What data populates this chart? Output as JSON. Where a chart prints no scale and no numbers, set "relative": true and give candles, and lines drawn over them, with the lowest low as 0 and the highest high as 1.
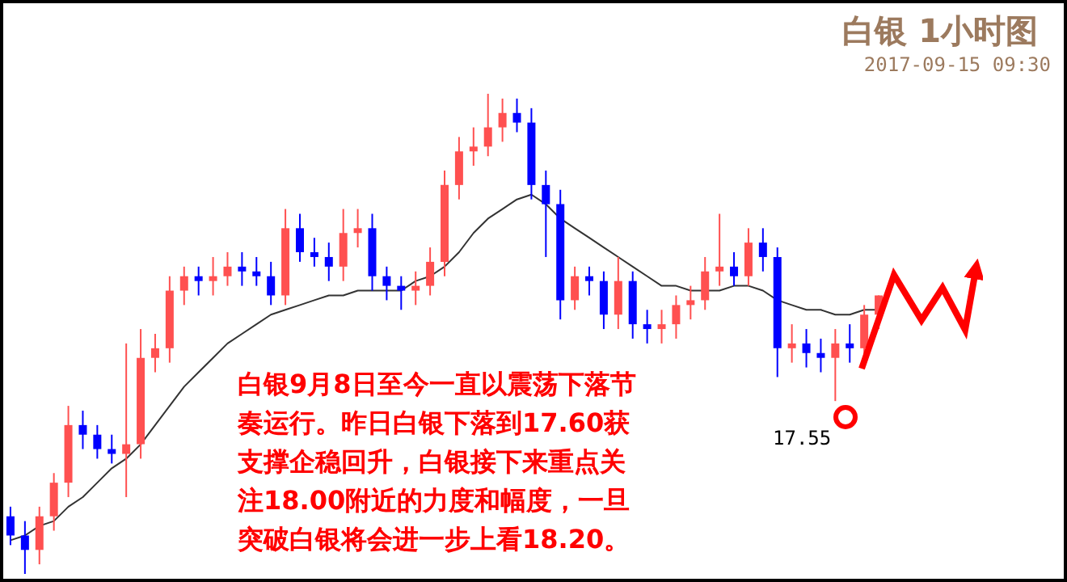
{
  "chart_data": {
    "type": "candlestick",
    "title": "白银 1小时图",
    "subtitle": "2017-09-15 09:30",
    "relative": true,
    "categories": [
      null,
      null,
      null,
      null,
      null,
      null,
      null,
      null,
      null,
      null,
      null,
      null,
      null,
      null,
      null,
      null,
      null,
      null,
      null,
      null,
      null,
      null,
      null,
      null,
      null,
      null,
      null,
      null,
      null,
      null,
      null,
      null,
      null,
      null,
      null,
      null,
      null,
      null,
      null,
      null,
      null,
      null,
      null,
      null,
      null,
      null,
      null,
      null,
      null,
      null,
      null,
      null,
      null,
      null,
      null,
      null,
      null,
      null,
      null,
      null,
      null
    ],
    "ohlc": [
      [
        0.12,
        0.14,
        0.06,
        0.08
      ],
      [
        0.08,
        0.11,
        0.0,
        0.05
      ],
      [
        0.05,
        0.14,
        0.02,
        0.12
      ],
      [
        0.12,
        0.21,
        0.09,
        0.19
      ],
      [
        0.19,
        0.35,
        0.16,
        0.31
      ],
      [
        0.31,
        0.34,
        0.26,
        0.29
      ],
      [
        0.29,
        0.31,
        0.24,
        0.26
      ],
      [
        0.26,
        0.29,
        0.23,
        0.25
      ],
      [
        0.25,
        0.48,
        0.16,
        0.27
      ],
      [
        0.27,
        0.51,
        0.24,
        0.45
      ],
      [
        0.45,
        0.5,
        0.42,
        0.47
      ],
      [
        0.47,
        0.62,
        0.44,
        0.59
      ],
      [
        0.59,
        0.64,
        0.56,
        0.62
      ],
      [
        0.62,
        0.64,
        0.58,
        0.61
      ],
      [
        0.61,
        0.66,
        0.58,
        0.62
      ],
      [
        0.62,
        0.67,
        0.6,
        0.64
      ],
      [
        0.64,
        0.67,
        0.6,
        0.63
      ],
      [
        0.63,
        0.66,
        0.6,
        0.62
      ],
      [
        0.62,
        0.65,
        0.56,
        0.58
      ],
      [
        0.58,
        0.76,
        0.56,
        0.72
      ],
      [
        0.72,
        0.75,
        0.65,
        0.67
      ],
      [
        0.67,
        0.7,
        0.64,
        0.66
      ],
      [
        0.66,
        0.69,
        0.61,
        0.64
      ],
      [
        0.64,
        0.76,
        0.61,
        0.71
      ],
      [
        0.71,
        0.76,
        0.68,
        0.72
      ],
      [
        0.72,
        0.75,
        0.59,
        0.62
      ],
      [
        0.62,
        0.64,
        0.57,
        0.6
      ],
      [
        0.6,
        0.62,
        0.55,
        0.59
      ],
      [
        0.59,
        0.63,
        0.56,
        0.6
      ],
      [
        0.6,
        0.68,
        0.58,
        0.65
      ],
      [
        0.65,
        0.84,
        0.62,
        0.81
      ],
      [
        0.81,
        0.91,
        0.78,
        0.88
      ],
      [
        0.88,
        0.93,
        0.85,
        0.89
      ],
      [
        0.89,
        1.0,
        0.87,
        0.93
      ],
      [
        0.93,
        0.99,
        0.9,
        0.96
      ],
      [
        0.96,
        0.99,
        0.92,
        0.94
      ],
      [
        0.94,
        0.97,
        0.78,
        0.81
      ],
      [
        0.81,
        0.84,
        0.66,
        0.77
      ],
      [
        0.77,
        0.8,
        0.53,
        0.57
      ],
      [
        0.57,
        0.64,
        0.55,
        0.62
      ],
      [
        0.62,
        0.64,
        0.58,
        0.61
      ],
      [
        0.61,
        0.63,
        0.51,
        0.54
      ],
      [
        0.54,
        0.66,
        0.51,
        0.61
      ],
      [
        0.61,
        0.63,
        0.49,
        0.52
      ],
      [
        0.52,
        0.55,
        0.48,
        0.51
      ],
      [
        0.51,
        0.55,
        0.48,
        0.52
      ],
      [
        0.52,
        0.58,
        0.49,
        0.56
      ],
      [
        0.56,
        0.6,
        0.53,
        0.57
      ],
      [
        0.57,
        0.66,
        0.55,
        0.63
      ],
      [
        0.63,
        0.75,
        0.6,
        0.64
      ],
      [
        0.64,
        0.67,
        0.6,
        0.62
      ],
      [
        0.62,
        0.72,
        0.6,
        0.69
      ],
      [
        0.69,
        0.72,
        0.63,
        0.66
      ],
      [
        0.66,
        0.68,
        0.41,
        0.47
      ],
      [
        0.47,
        0.52,
        0.44,
        0.48
      ],
      [
        0.48,
        0.51,
        0.43,
        0.46
      ],
      [
        0.46,
        0.49,
        0.42,
        0.45
      ],
      [
        0.45,
        0.51,
        0.36,
        0.48
      ],
      [
        0.48,
        0.52,
        0.44,
        0.47
      ],
      [
        0.47,
        0.56,
        0.44,
        0.54
      ],
      [
        0.54,
        0.58,
        0.51,
        0.58
      ]
    ],
    "colors": [
      "#0000ff",
      "#0000ff",
      "#ff5050",
      "#ff5050",
      "#ff5050",
      "#0000ff",
      "#0000ff",
      "#0000ff",
      "#ff5050",
      "#ff5050",
      "#ff5050",
      "#ff5050",
      "#ff5050",
      "#0000ff",
      "#ff5050",
      "#ff5050",
      "#0000ff",
      "#0000ff",
      "#0000ff",
      "#ff5050",
      "#0000ff",
      "#0000ff",
      "#0000ff",
      "#ff5050",
      "#ff5050",
      "#0000ff",
      "#0000ff",
      "#0000ff",
      "#ff5050",
      "#ff5050",
      "#ff5050",
      "#ff5050",
      "#ff5050",
      "#ff5050",
      "#ff5050",
      "#0000ff",
      "#0000ff",
      "#0000ff",
      "#0000ff",
      "#ff5050",
      "#0000ff",
      "#0000ff",
      "#ff5050",
      "#0000ff",
      "#0000ff",
      "#ff5050",
      "#ff5050",
      "#ff5050",
      "#ff5050",
      "#ff5050",
      "#0000ff",
      "#ff5050",
      "#0000ff",
      "#0000ff",
      "#ff5050",
      "#0000ff",
      "#0000ff",
      "#ff5050",
      "#0000ff",
      "#ff5050",
      "#ff5050"
    ],
    "series": [
      {
        "type": "line",
        "color": "#333333",
        "values": [
          0.07,
          0.08,
          0.1,
          0.11,
          0.14,
          0.16,
          0.19,
          0.22,
          0.24,
          0.27,
          0.31,
          0.35,
          0.39,
          0.42,
          0.45,
          0.48,
          0.5,
          0.52,
          0.54,
          0.55,
          0.56,
          0.57,
          0.58,
          0.58,
          0.59,
          0.59,
          0.59,
          0.59,
          0.61,
          0.62,
          0.64,
          0.67,
          0.71,
          0.74,
          0.76,
          0.78,
          0.79,
          0.77,
          0.74,
          0.72,
          0.7,
          0.68,
          0.66,
          0.64,
          0.62,
          0.6,
          0.6,
          0.59,
          0.59,
          0.59,
          0.6,
          0.6,
          0.59,
          0.57,
          0.56,
          0.55,
          0.55,
          0.54,
          0.54,
          0.55,
          0.55
        ]
      }
    ],
    "annotations": [
      "白银9月8日至今一直以震荡下落节奏运行。昨日白银下落到17.60获支撑企稳回升，白银接下来重点关注18.00附近的力度和幅度，一旦突破白银将会进一步上看18.20。",
      "17.55"
    ]
  }
}
